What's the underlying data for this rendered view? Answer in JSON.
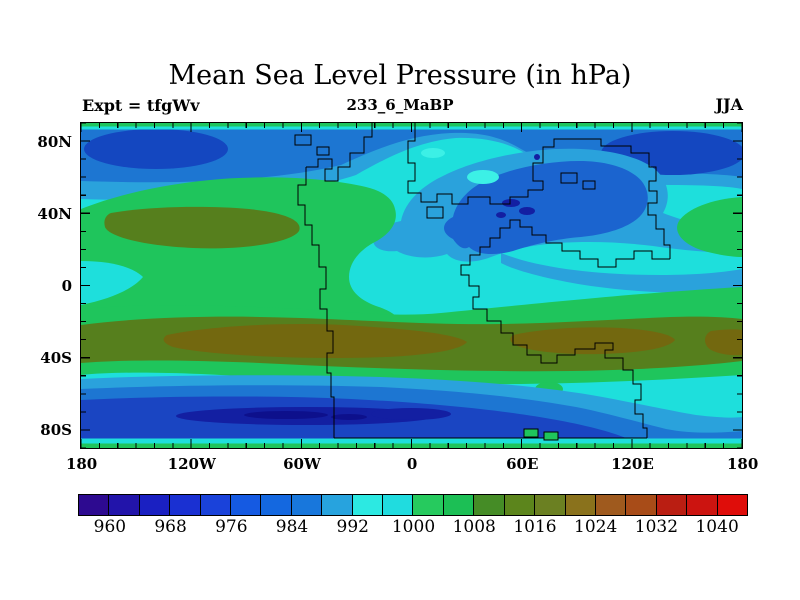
{
  "header": {
    "title": "Mean Sea Level Pressure (in hPa)",
    "subtitle": "233_6_MaBP",
    "experiment_label": "Expt = tfgWv",
    "season_label": "JJA"
  },
  "axes": {
    "lat_tick_labels": [
      "80N",
      "40N",
      "0",
      "40S",
      "80S"
    ],
    "lon_tick_labels": [
      "180",
      "120W",
      "60W",
      "0",
      "60E",
      "120E",
      "180"
    ]
  },
  "colorbar": {
    "boundary_labels": [
      "960",
      "968",
      "976",
      "984",
      "992",
      "1000",
      "1008",
      "1016",
      "1024",
      "1032",
      "1040"
    ],
    "units": "hPa",
    "min_value": 956,
    "max_value": 1044,
    "cell_interval_hPa": 4,
    "cell_colors": [
      "#2d0a90",
      "#2214aa",
      "#1a20c2",
      "#1a30d2",
      "#1a42da",
      "#155ae2",
      "#1468e0",
      "#1877dc",
      "#27a3de",
      "#2ce9e2",
      "#20dcdf",
      "#26ca5e",
      "#1cbf55",
      "#458c26",
      "#5c851c",
      "#6b8022",
      "#8a721c",
      "#9f5a1e",
      "#a84c18",
      "#ba1e12",
      "#cc1410",
      "#df0d0a"
    ]
  },
  "colors": {
    "map-colors": {
      "cyan": "#1edfdc",
      "cyan-light": "#3cf0e6",
      "green": "#1fc55c",
      "light-blue": "#2aa2dc",
      "med-blue": "#1d76d2",
      "monsoon-blue": "#1b64cf",
      "dark-blue": "#1a45c2",
      "ellipse-blue": "#1447c0",
      "navy": "#131fa2",
      "deep-navy": "#0d108c",
      "olive": "#567f1d",
      "olive-core": "#73680f",
      "coast": "#000000",
      "frame": "#000000"
    }
  },
  "chart_data": {
    "type": "heatmap",
    "subtype": "filled-contour-map",
    "title": "Mean Sea Level Pressure (in hPa)",
    "run_id": "233_6_MaBP",
    "experiment": "tfgWv",
    "season": "JJA",
    "units": "hPa",
    "projection": "equirectangular",
    "lon_range": [
      -180,
      180
    ],
    "lat_range": [
      -90,
      90
    ],
    "contour_interval": 4,
    "contour_levels": [
      956,
      960,
      964,
      968,
      972,
      976,
      980,
      984,
      988,
      992,
      996,
      1000,
      1004,
      1008,
      1012,
      1016,
      1020,
      1024,
      1028,
      1032,
      1036,
      1040,
      1044
    ],
    "legend_position": "bottom",
    "grid": false,
    "overlay": "paleo-continental coastlines (stepped outlines)",
    "features": [
      {
        "name": "north-polar low (western lobe)",
        "lat": "72N",
        "lon": "150W",
        "approx_value_hPa": 976
      },
      {
        "name": "north-polar low (eastern lobe)",
        "lat": "72N",
        "lon": "160E",
        "approx_value_hPa": 976
      },
      {
        "name": "subtropical high, NW ocean",
        "lat": "38N",
        "lon": "120W",
        "approx_value_hPa": 1014
      },
      {
        "name": "continental monsoon low over northern landmass",
        "lat": "45N",
        "lon": "40E",
        "approx_value_hPa": 982
      },
      {
        "name": "southern subtropical high belt",
        "lat": "35S",
        "lon": "belt (all lons)",
        "approx_value_hPa": 1022
      },
      {
        "name": "southern circumpolar trough",
        "lat": "65S",
        "lon": "90W",
        "approx_value_hPa": 960
      },
      {
        "name": "polar edge rows (both poles)",
        "lat": "90N/90S",
        "lon": "all",
        "approx_value_hPa": 1002
      }
    ],
    "approx_field": {
      "lons": [
        -180,
        -150,
        -120,
        -90,
        -60,
        -30,
        0,
        30,
        60,
        90,
        120,
        150,
        180
      ],
      "lats": [
        90,
        70,
        50,
        30,
        10,
        -10,
        -30,
        -50,
        -70,
        -90
      ],
      "values_hPa": [
        [
          1002,
          1002,
          1002,
          1002,
          1002,
          1002,
          1002,
          1002,
          1002,
          1002,
          1002,
          1002,
          1002
        ],
        [
          982,
          978,
          977,
          982,
          988,
          992,
          990,
          986,
          984,
          982,
          978,
          977,
          982
        ],
        [
          1004,
          1007,
          1008,
          1005,
          997,
          993,
          988,
          986,
          986,
          989,
          993,
          1000,
          1004
        ],
        [
          1007,
          1013,
          1014,
          1011,
          1003,
          997,
          990,
          987,
          989,
          993,
          997,
          1003,
          1007
        ],
        [
          1003,
          1004,
          1006,
          1006,
          1003,
          998,
          996,
          995,
          995,
          996,
          997,
          999,
          1003
        ],
        [
          1000,
          1002,
          1004,
          1004,
          1003,
          1003,
          1004,
          1004,
          1002,
          1000,
          998,
          998,
          1000
        ],
        [
          1012,
          1015,
          1017,
          1019,
          1019,
          1020,
          1018,
          1017,
          1018,
          1020,
          1016,
          1012,
          1012
        ],
        [
          1001,
          1003,
          1004,
          1005,
          1004,
          1002,
          1000,
          1000,
          1001,
          1000,
          998,
          996,
          1001
        ],
        [
          972,
          968,
          965,
          963,
          965,
          968,
          970,
          972,
          974,
          977,
          983,
          987,
          975
        ],
        [
          1002,
          1002,
          1002,
          1002,
          1002,
          1002,
          1002,
          1002,
          1002,
          1002,
          1002,
          1002,
          1002
        ]
      ]
    }
  }
}
